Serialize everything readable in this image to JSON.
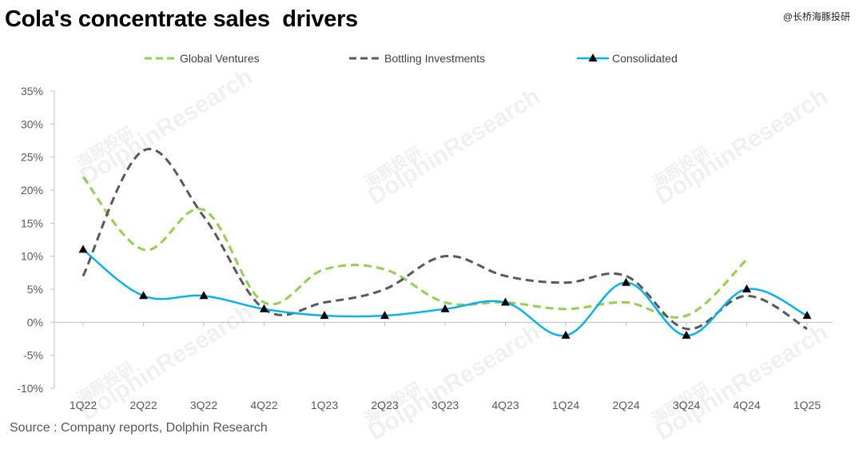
{
  "title": "Cola's concentrate sales  drivers",
  "corner_mark": "@长桥海豚投研",
  "source": "Source : Company reports, Dolphin Research",
  "watermark": "DolphinResearch",
  "watermark_cn": "海豚投研",
  "colors": {
    "global_ventures": "#92D050",
    "bottling_investments": "#595959",
    "consolidated": "#00B0F0",
    "axis": "#bfbfbf",
    "tick_text": "#595959"
  },
  "chart_data": {
    "type": "line",
    "title": "Cola's concentrate sales  drivers",
    "categories": [
      "1Q22",
      "2Q22",
      "3Q22",
      "4Q22",
      "1Q23",
      "2Q23",
      "3Q23",
      "4Q23",
      "1Q24",
      "2Q24",
      "3Q24",
      "4Q24",
      "1Q25"
    ],
    "ylim": [
      -10,
      35
    ],
    "y_ticks": [
      -10,
      -5,
      0,
      5,
      10,
      15,
      20,
      25,
      30,
      35
    ],
    "y_tick_labels": [
      "-10%",
      "-5%",
      "0%",
      "5%",
      "10%",
      "15%",
      "20%",
      "25%",
      "30%",
      "35%"
    ],
    "y_format": "percent",
    "grid": false,
    "legend": "top",
    "series": [
      {
        "name": "Global Ventures",
        "style": "dashed",
        "color": "#92D050",
        "values": [
          22,
          11,
          17,
          3,
          8,
          8,
          3,
          3,
          2,
          3,
          1,
          9.5,
          null
        ]
      },
      {
        "name": "Bottling Investments",
        "style": "dashed",
        "color": "#595959",
        "values": [
          7,
          26,
          16,
          2,
          3,
          5,
          10,
          7,
          6,
          7,
          -1,
          4,
          -1
        ]
      },
      {
        "name": "Consolidated",
        "style": "solid",
        "marker": "triangle",
        "color": "#00B0F0",
        "values": [
          11,
          4,
          4,
          2,
          1,
          1,
          2,
          3,
          -2,
          6,
          -2,
          5,
          1
        ]
      }
    ]
  }
}
